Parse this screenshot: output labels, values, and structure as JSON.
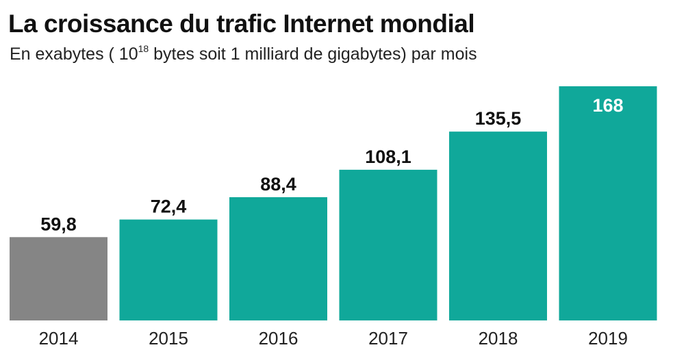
{
  "title": "La croissance du trafic Internet mondial",
  "subtitle": {
    "before": "En exabytes ( 10",
    "exponent": "18",
    "after": " bytes soit 1 milliard de gigabytes) par mois"
  },
  "chart_data": {
    "type": "bar",
    "title": "La croissance du trafic Internet mondial",
    "subtitle": "En exabytes ( 10^18 bytes soit 1 milliard de gigabytes) par mois",
    "categories": [
      "2014",
      "2015",
      "2016",
      "2017",
      "2018",
      "2019"
    ],
    "values": [
      59.8,
      72.4,
      88.4,
      108.1,
      135.5,
      168
    ],
    "value_labels": [
      "59,8",
      "72,4",
      "88,4",
      "108,1",
      "135,5",
      "168"
    ],
    "ylim": [
      0,
      168
    ],
    "grid": false,
    "bar_colors": [
      "#858585",
      "#10A89A",
      "#10A89A",
      "#10A89A",
      "#10A89A",
      "#10A89A"
    ],
    "label_colors": [
      "#111111",
      "#111111",
      "#111111",
      "#111111",
      "#111111",
      "#ffffff"
    ],
    "label_inside": [
      false,
      false,
      false,
      false,
      false,
      true
    ]
  }
}
